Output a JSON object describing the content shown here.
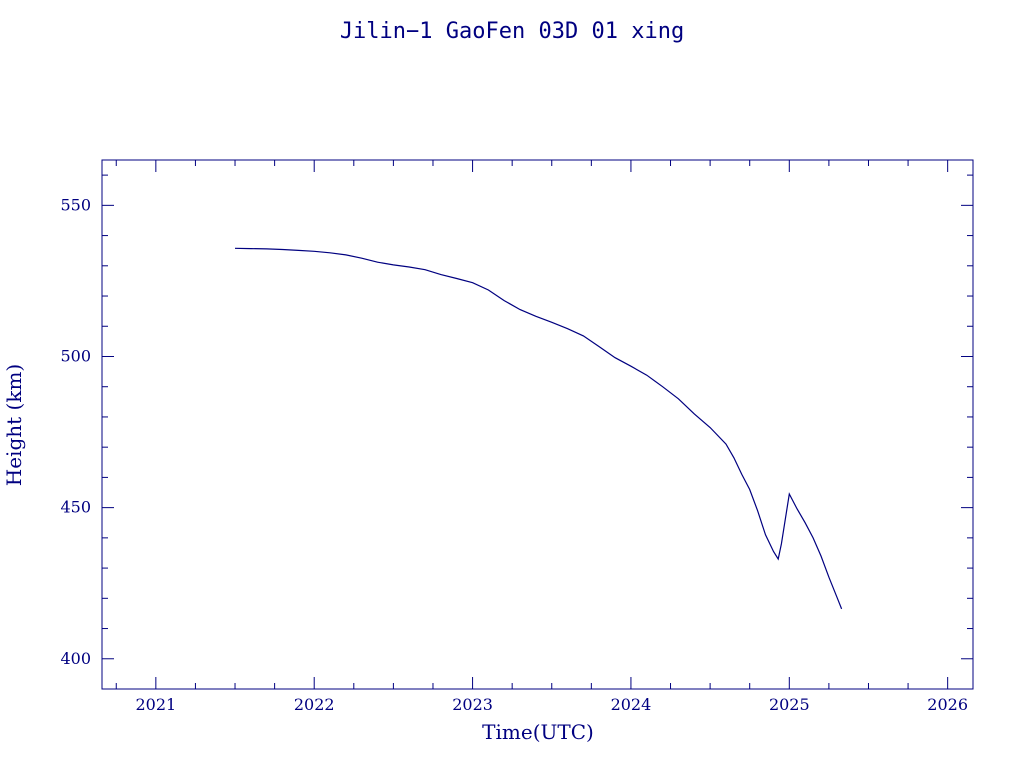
{
  "colors": {
    "ink": "#000080",
    "background": "#ffffff"
  },
  "chart_data": {
    "type": "line",
    "title": "Jilin−1 GaoFen 03D 01 xing",
    "xlabel": "Time(UTC)",
    "ylabel": "Height (km)",
    "xlim": [
      2020.66,
      2026.16
    ],
    "ylim": [
      390,
      565
    ],
    "x_major_ticks": [
      2021,
      2022,
      2023,
      2024,
      2025,
      2026
    ],
    "x_tick_labels": [
      "2021",
      "2022",
      "2023",
      "2024",
      "2025",
      "2026"
    ],
    "x_minor_step": 0.25,
    "y_major_ticks": [
      400,
      450,
      500,
      550
    ],
    "y_tick_labels": [
      "400",
      "450",
      "500",
      "550"
    ],
    "y_minor_step": 10,
    "grid": false,
    "legend": "none",
    "series": [
      {
        "x": [
          2021.5,
          2021.6,
          2021.7,
          2021.8,
          2021.9,
          2022.0,
          2022.1,
          2022.2,
          2022.3,
          2022.4,
          2022.5,
          2022.6,
          2022.7,
          2022.8,
          2022.9,
          2023.0,
          2023.1,
          2023.2,
          2023.3,
          2023.4,
          2023.5,
          2023.6,
          2023.7,
          2023.8,
          2023.9,
          2024.0,
          2024.1,
          2024.2,
          2024.3,
          2024.4,
          2024.5,
          2024.6,
          2024.65,
          2024.7,
          2024.75,
          2024.8,
          2024.85,
          2024.9,
          2024.93,
          2024.95,
          2025.0,
          2025.05,
          2025.1,
          2025.15,
          2025.2,
          2025.25,
          2025.3,
          2025.33
        ],
        "values": [
          535.8,
          535.7,
          535.6,
          535.4,
          535.1,
          534.8,
          534.3,
          533.6,
          532.5,
          531.2,
          530.3,
          529.6,
          528.7,
          527.1,
          525.8,
          524.4,
          522.0,
          518.5,
          515.5,
          513.3,
          511.3,
          509.2,
          506.8,
          503.2,
          499.6,
          496.8,
          493.8,
          490.0,
          486.0,
          481.0,
          476.5,
          471.0,
          466.5,
          461.0,
          456.0,
          449.0,
          441.0,
          435.5,
          433.0,
          438.0,
          454.5,
          449.5,
          445.0,
          440.0,
          434.0,
          427.0,
          420.5,
          416.5
        ]
      }
    ]
  }
}
